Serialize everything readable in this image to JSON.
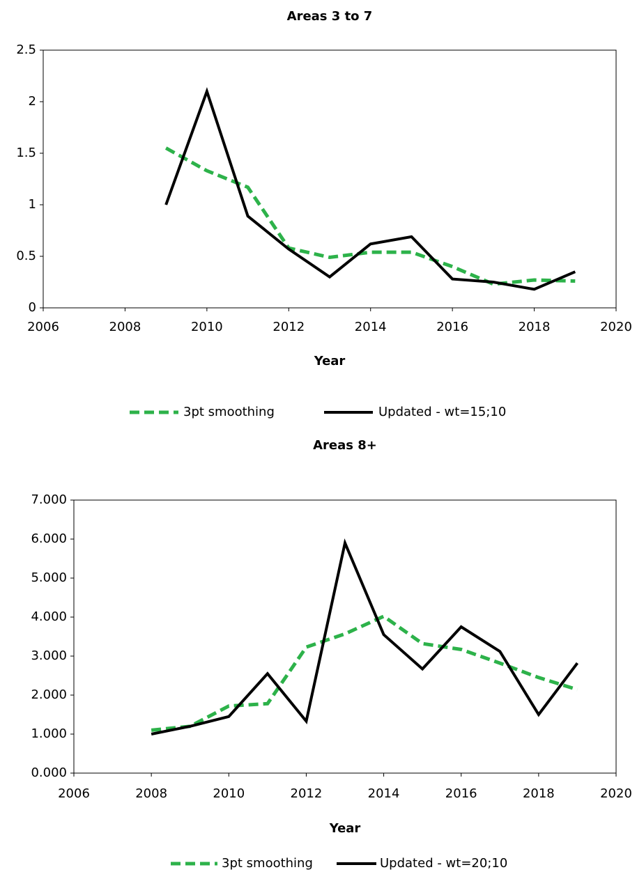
{
  "chart_data": [
    {
      "type": "line",
      "title": "Areas 3 to 7",
      "x_label": "Year",
      "x": [
        2009,
        2010,
        2011,
        2012,
        2013,
        2014,
        2015,
        2016,
        2017,
        2018,
        2019
      ],
      "series": [
        {
          "name": "3pt smoothing",
          "color": "#2db24a",
          "dashed": true,
          "values": [
            1.55,
            1.33,
            1.17,
            0.58,
            0.49,
            0.54,
            0.54,
            0.4,
            0.23,
            0.27,
            0.26
          ]
        },
        {
          "name": "Updated - wt=15;10",
          "color": "#000000",
          "dashed": false,
          "values": [
            1.0,
            2.1,
            0.89,
            0.57,
            0.3,
            0.62,
            0.69,
            0.28,
            0.25,
            0.18,
            0.35
          ]
        }
      ],
      "xlim": [
        2006,
        2020
      ],
      "xticks": [
        2006,
        2008,
        2010,
        2012,
        2014,
        2016,
        2018,
        2020
      ],
      "ylim": [
        0,
        2.5
      ],
      "yticks": [
        0,
        0.5,
        1,
        1.5,
        2,
        2.5
      ],
      "grid": false,
      "legend": "bottom"
    },
    {
      "type": "line",
      "title": "Areas 8+",
      "x_label": "Year",
      "x": [
        2008,
        2009,
        2010,
        2011,
        2012,
        2013,
        2014,
        2015,
        2016,
        2017,
        2018,
        2019
      ],
      "series": [
        {
          "name": "3pt smoothing",
          "color": "#2db24a",
          "dashed": true,
          "values": [
            1.1,
            1.2,
            1.72,
            1.78,
            3.23,
            3.57,
            4.02,
            3.32,
            3.17,
            2.82,
            2.45,
            2.14
          ]
        },
        {
          "name": "Updated - wt=20;10",
          "color": "#000000",
          "dashed": false,
          "values": [
            1.0,
            1.2,
            1.45,
            2.55,
            1.33,
            5.9,
            3.55,
            2.67,
            3.75,
            3.12,
            1.5,
            2.82
          ]
        }
      ],
      "xlim": [
        2006,
        2020
      ],
      "xticks": [
        2006,
        2008,
        2010,
        2012,
        2014,
        2016,
        2018,
        2020
      ],
      "ylim": [
        0,
        7
      ],
      "yticks": [
        {
          "value": 0,
          "label": "0.000"
        },
        {
          "value": 1,
          "label": "1.000"
        },
        {
          "value": 2,
          "label": "2.000"
        },
        {
          "value": 3,
          "label": "3.000"
        },
        {
          "value": 4,
          "label": "4.000"
        },
        {
          "value": 5,
          "label": "5.000"
        },
        {
          "value": 6,
          "label": "6.000"
        },
        {
          "value": 7,
          "label": "7.000"
        }
      ],
      "grid": false,
      "legend": "bottom"
    }
  ]
}
